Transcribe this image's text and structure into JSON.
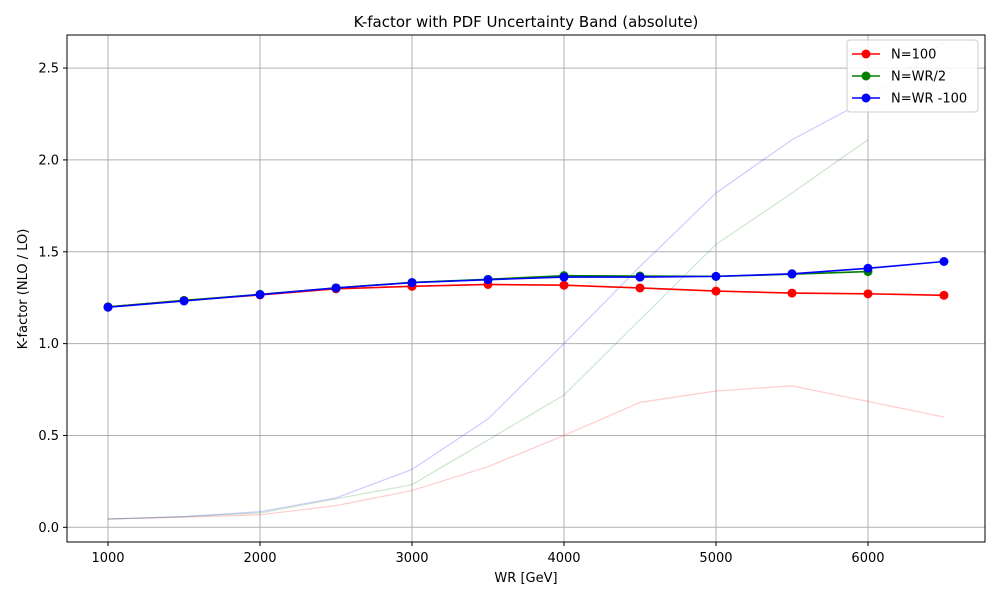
{
  "chart_data": {
    "type": "line",
    "title": "K-factor with PDF Uncertainty Band (absolute)",
    "xlabel": "WR [GeV]",
    "ylabel": "K-factor (NLO / LO)",
    "xlim": [
      730,
      6770
    ],
    "ylim": [
      -0.08,
      2.68
    ],
    "xticks": [
      1000,
      2000,
      3000,
      4000,
      5000,
      6000
    ],
    "yticks": [
      0.0,
      0.5,
      1.0,
      1.5,
      2.0,
      2.5
    ],
    "grid": true,
    "legend_position": "top-right",
    "series": [
      {
        "name": "N=100",
        "color": "#ff0000",
        "x": [
          1000,
          1500,
          2000,
          2500,
          3000,
          3500,
          4000,
          4500,
          5000,
          5500,
          6000,
          6500
        ],
        "values": [
          1.2,
          1.235,
          1.265,
          1.298,
          1.312,
          1.322,
          1.318,
          1.303,
          1.286,
          1.275,
          1.271,
          1.263
        ]
      },
      {
        "name": "N=WR/2",
        "color": "#008000",
        "x": [
          1000,
          1500,
          2000,
          2500,
          3000,
          3500,
          4000,
          4500,
          5000,
          5500,
          6000
        ],
        "values": [
          1.2,
          1.235,
          1.268,
          1.303,
          1.333,
          1.35,
          1.37,
          1.368,
          1.366,
          1.378,
          1.392
        ]
      },
      {
        "name": "N=WR -100",
        "color": "#0000ff",
        "x": [
          1000,
          1500,
          2000,
          2500,
          3000,
          3500,
          4000,
          4500,
          5000,
          5500,
          6000,
          6500
        ],
        "values": [
          1.198,
          1.232,
          1.267,
          1.303,
          1.332,
          1.348,
          1.362,
          1.362,
          1.366,
          1.38,
          1.41,
          1.447
        ]
      }
    ],
    "bands": [
      {
        "color": "#ff0000",
        "x": [
          1000,
          1500,
          2000,
          2500,
          3000,
          3500,
          4000,
          4500,
          5000,
          5500,
          6000,
          6500
        ],
        "values": [
          0.045,
          0.055,
          0.068,
          0.118,
          0.2,
          0.33,
          0.5,
          0.68,
          0.742,
          0.77,
          0.685,
          0.6
        ]
      },
      {
        "color": "#008000",
        "x": [
          1000,
          1500,
          2000,
          2500,
          3000,
          3500,
          4000,
          4500,
          5000,
          5500,
          6000
        ],
        "values": [
          0.045,
          0.058,
          0.078,
          0.155,
          0.232,
          0.475,
          0.72,
          1.13,
          1.54,
          1.82,
          2.11
        ]
      },
      {
        "color": "#0000ff",
        "x": [
          1000,
          1500,
          2000,
          2500,
          3000,
          3500,
          4000,
          4500,
          5000,
          5500,
          6000,
          6500
        ],
        "values": [
          0.045,
          0.058,
          0.085,
          0.16,
          0.315,
          0.59,
          1.0,
          1.42,
          1.82,
          2.11,
          2.33,
          2.64
        ]
      }
    ]
  }
}
